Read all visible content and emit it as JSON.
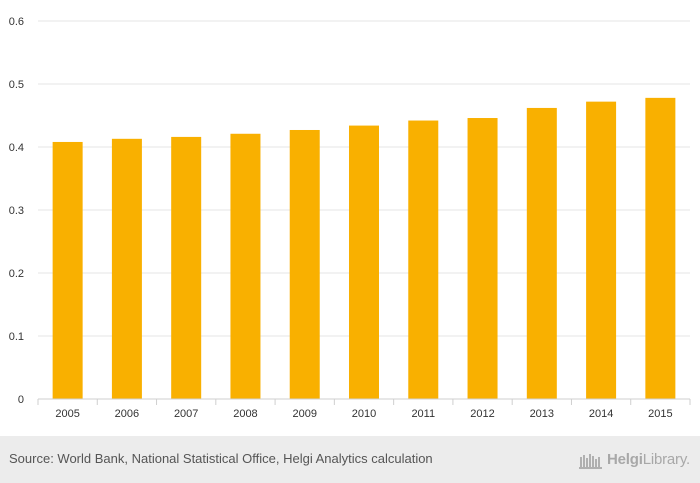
{
  "chart_data": {
    "type": "bar",
    "categories": [
      "2005",
      "2006",
      "2007",
      "2008",
      "2009",
      "2010",
      "2011",
      "2012",
      "2013",
      "2014",
      "2015"
    ],
    "values": [
      0.408,
      0.413,
      0.416,
      0.421,
      0.427,
      0.434,
      0.442,
      0.446,
      0.462,
      0.472,
      0.478
    ],
    "yticks": [
      "0",
      "0.1",
      "0.2",
      "0.3",
      "0.4",
      "0.5",
      "0.6"
    ],
    "ylim": [
      0,
      0.6
    ],
    "title": "",
    "xlabel": "",
    "ylabel": "",
    "bar_color": "#f9b000",
    "grid": true
  },
  "footer": {
    "source": "Source: World Bank, National Statistical Office, Helgi Analytics calculation",
    "brand_bold": "Helgi",
    "brand_rest": "Library."
  }
}
